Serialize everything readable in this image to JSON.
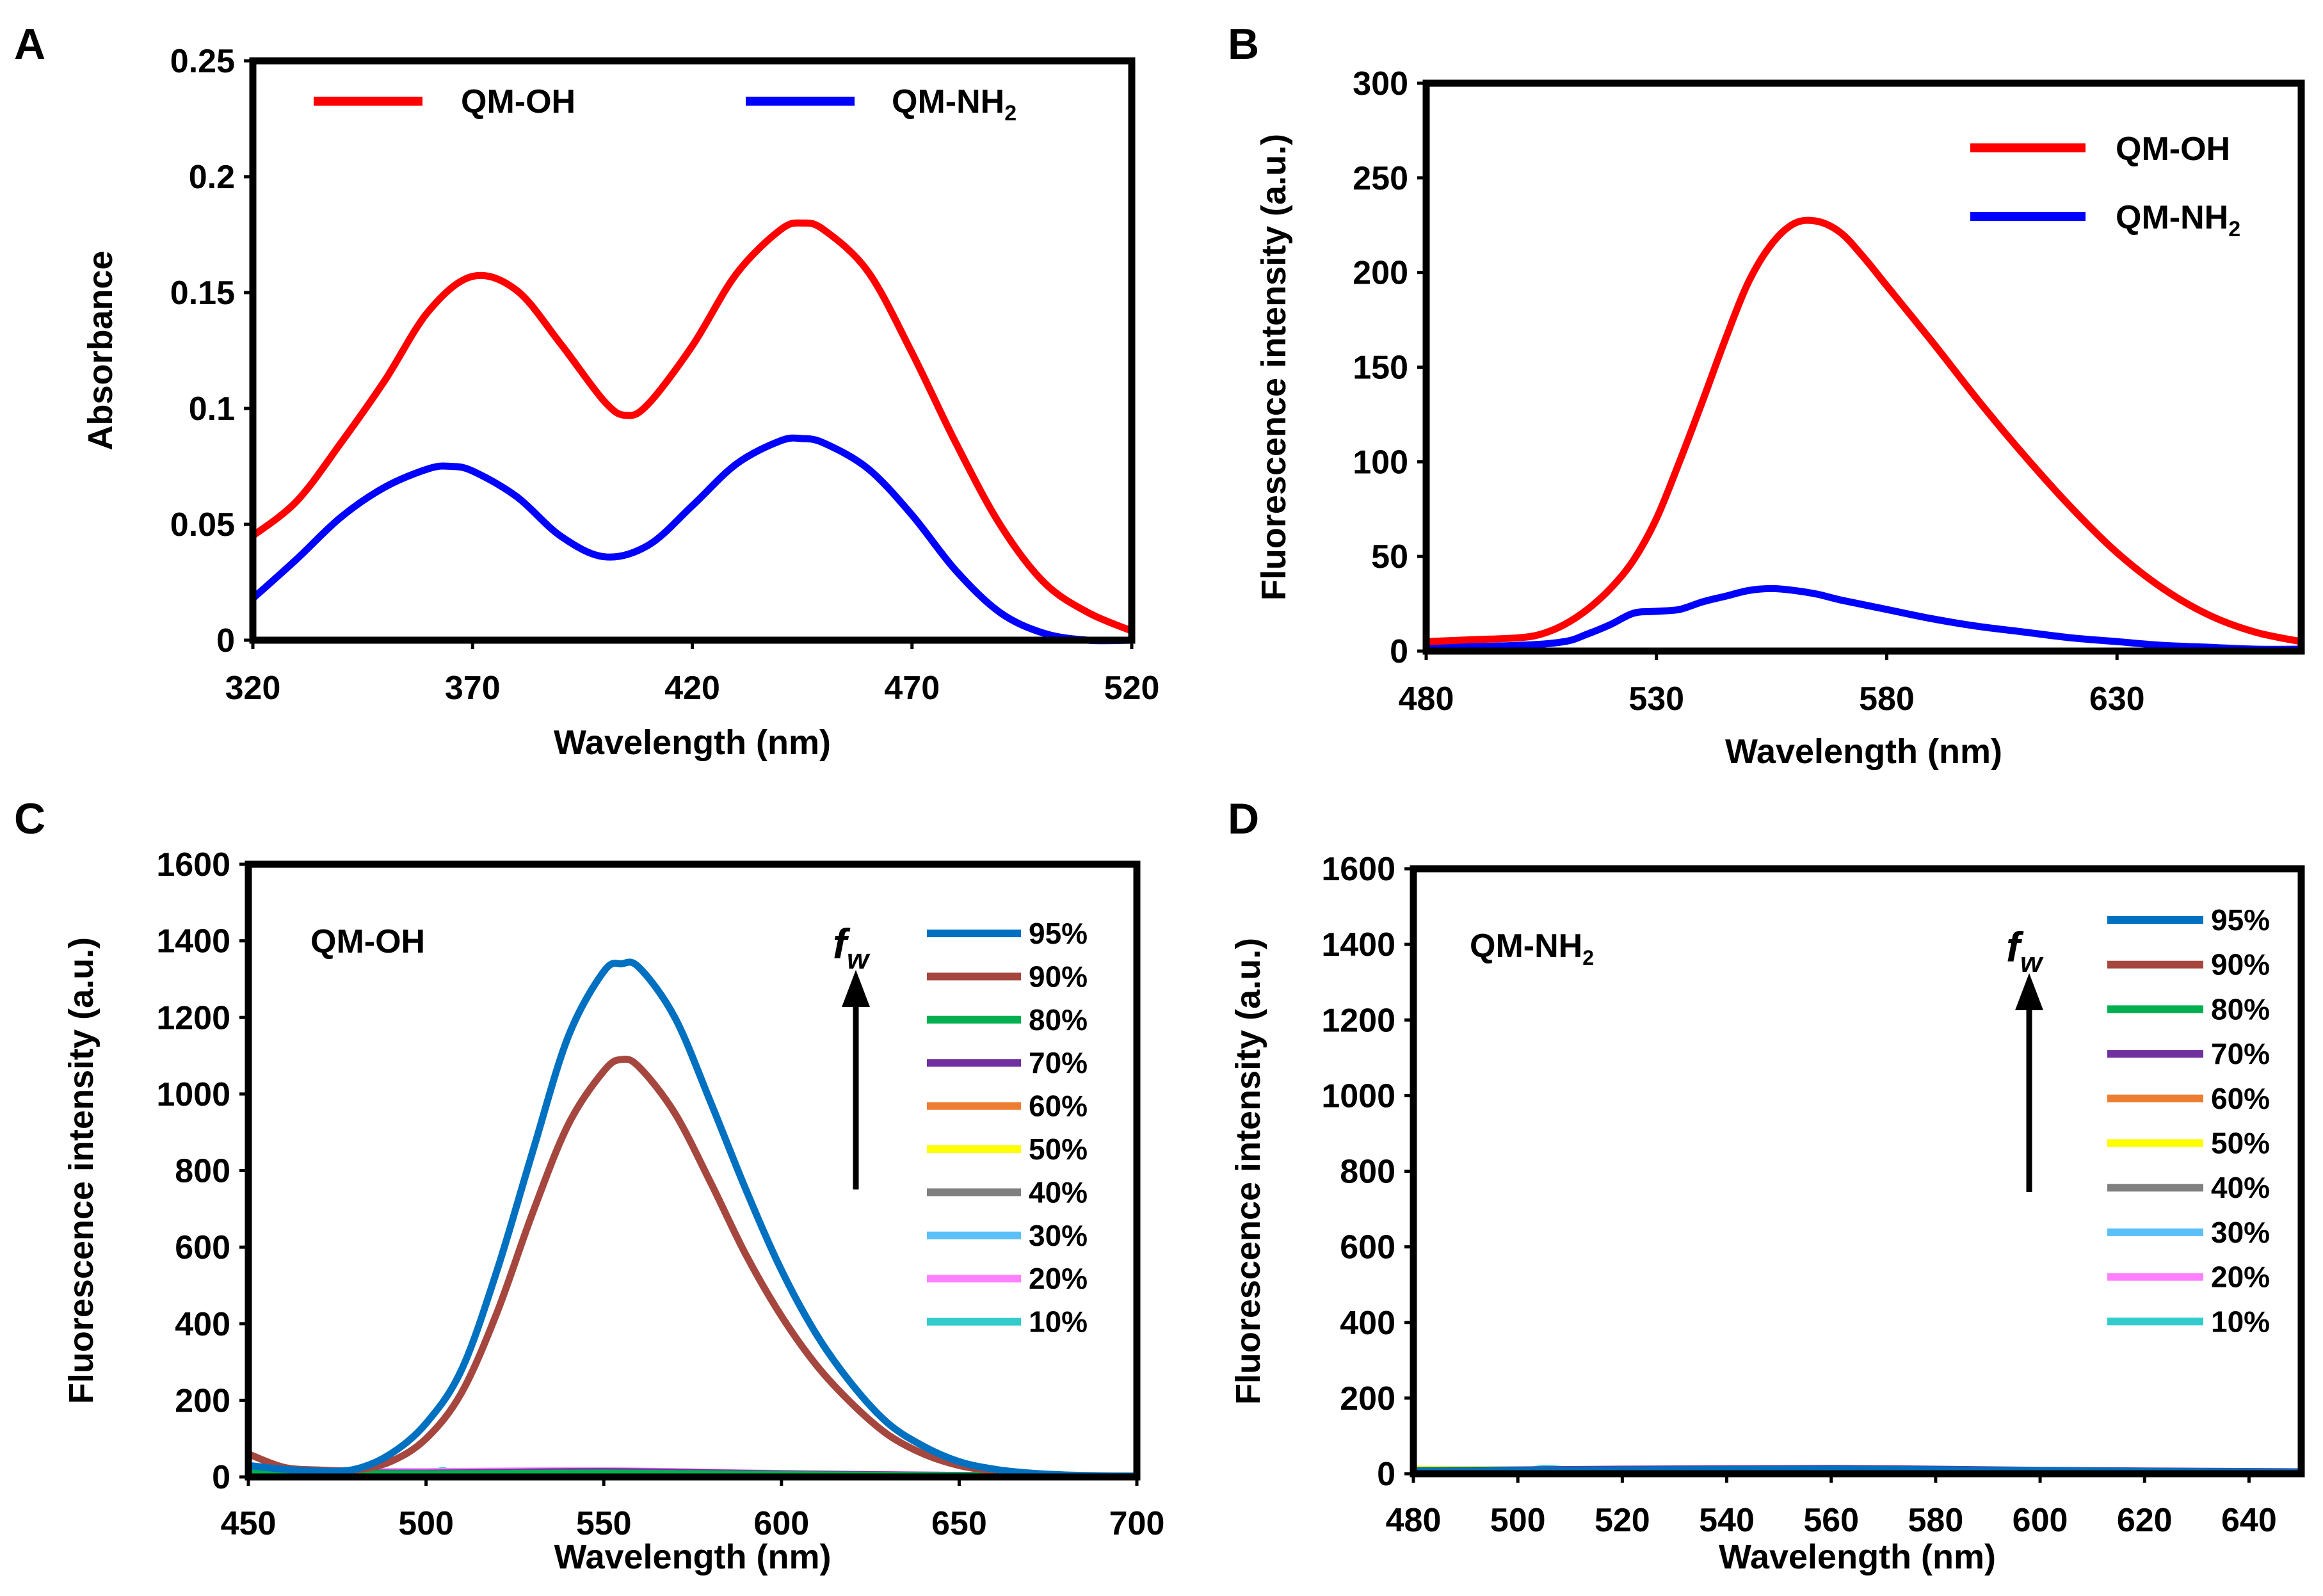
{
  "chart_data": [
    {
      "panel": "A",
      "type": "line",
      "title": "",
      "xlabel": "Wavelength (nm)",
      "ylabel": "Absorbance",
      "xlim": [
        320,
        520
      ],
      "ylim": [
        0,
        0.25
      ],
      "xticks": [
        "320",
        "370",
        "420",
        "470",
        "520"
      ],
      "yticks": [
        "0",
        "0.05",
        "0.1",
        "0.15",
        "0.2",
        "0.25"
      ],
      "legend_position": "top",
      "series": [
        {
          "name": "QM-OH",
          "label": "QM-OH",
          "color": "#ff0000",
          "x": [
            320,
            330,
            340,
            350,
            360,
            370,
            380,
            390,
            400,
            405,
            410,
            420,
            430,
            440,
            445,
            450,
            460,
            470,
            480,
            490,
            500,
            510,
            520
          ],
          "y": [
            0.045,
            0.06,
            0.085,
            0.112,
            0.142,
            0.157,
            0.151,
            0.128,
            0.103,
            0.097,
            0.102,
            0.127,
            0.158,
            0.177,
            0.18,
            0.177,
            0.159,
            0.124,
            0.085,
            0.05,
            0.025,
            0.012,
            0.004
          ]
        },
        {
          "name": "QM-NH2",
          "label_main": "QM-NH",
          "label_sub": "2",
          "color": "#0000ff",
          "x": [
            320,
            330,
            340,
            350,
            360,
            365,
            370,
            380,
            390,
            400,
            410,
            420,
            430,
            440,
            445,
            450,
            460,
            470,
            480,
            490,
            500,
            510,
            520
          ],
          "y": [
            0.018,
            0.035,
            0.053,
            0.066,
            0.074,
            0.075,
            0.073,
            0.062,
            0.045,
            0.036,
            0.041,
            0.058,
            0.076,
            0.086,
            0.087,
            0.085,
            0.074,
            0.054,
            0.03,
            0.012,
            0.003,
            0.0,
            0.0
          ]
        }
      ]
    },
    {
      "panel": "B",
      "type": "line",
      "title": "",
      "xlabel": "Wavelength (nm)",
      "ylabel": "Fluorescence intensity (a.u.)",
      "xlim": [
        480,
        670
      ],
      "ylim": [
        0,
        300
      ],
      "xticks": [
        "480",
        "530",
        "580",
        "630"
      ],
      "xtick_values": [
        480,
        530,
        580,
        630
      ],
      "yticks": [
        "0",
        "50",
        "100",
        "150",
        "200",
        "250",
        "300"
      ],
      "legend_position": "top-right",
      "series": [
        {
          "name": "QM-OH",
          "label": "QM-OH",
          "color": "#ff0000",
          "x": [
            480,
            490,
            500,
            505,
            510,
            515,
            520,
            525,
            530,
            535,
            540,
            545,
            550,
            555,
            560,
            565,
            570,
            575,
            580,
            590,
            600,
            610,
            620,
            630,
            640,
            650,
            660,
            670
          ],
          "y": [
            5,
            6,
            7,
            9,
            14,
            22,
            33,
            48,
            70,
            100,
            132,
            165,
            195,
            215,
            226,
            227,
            221,
            208,
            193,
            163,
            132,
            103,
            76,
            52,
            33,
            19,
            10,
            5
          ]
        },
        {
          "name": "QM-NH2",
          "label_main": "QM-NH",
          "label_sub": "2",
          "color": "#0000ff",
          "x": [
            480,
            500,
            510,
            515,
            520,
            525,
            530,
            535,
            540,
            545,
            550,
            555,
            560,
            565,
            570,
            580,
            590,
            600,
            610,
            620,
            630,
            640,
            650,
            660,
            670
          ],
          "y": [
            2,
            3,
            5,
            9,
            14,
            20,
            21,
            22,
            26,
            29,
            32,
            33,
            32,
            30,
            27,
            22,
            17,
            13,
            10,
            7,
            5,
            3,
            2,
            1,
            1
          ]
        }
      ]
    },
    {
      "panel": "C",
      "type": "line",
      "title": "",
      "inset_label": "QM-OH",
      "xlabel": "Wavelength (nm)",
      "ylabel": "Fluorescence intensity (a.u.)",
      "xlim": [
        450,
        700
      ],
      "ylim": [
        0,
        1600
      ],
      "xticks": [
        "450",
        "500",
        "550",
        "600",
        "650",
        "700"
      ],
      "yticks": [
        "0",
        "200",
        "400",
        "600",
        "800",
        "1000",
        "1200",
        "1400",
        "1600"
      ],
      "arrow_label_main": "f",
      "arrow_label_sub": "w",
      "legend_position": "top-right",
      "series": [
        {
          "name": "95%",
          "color": "#0070c0",
          "x": [
            450,
            460,
            470,
            480,
            490,
            500,
            510,
            520,
            530,
            540,
            550,
            555,
            560,
            570,
            580,
            590,
            600,
            610,
            620,
            630,
            640,
            650,
            660,
            670,
            680,
            690,
            700
          ],
          "y": [
            30,
            20,
            15,
            20,
            60,
            140,
            280,
            540,
            850,
            1150,
            1320,
            1340,
            1330,
            1200,
            980,
            750,
            540,
            370,
            240,
            140,
            80,
            40,
            20,
            10,
            5,
            3,
            2
          ]
        },
        {
          "name": "90%",
          "color": "#a5473f",
          "x": [
            450,
            460,
            470,
            480,
            490,
            500,
            510,
            520,
            530,
            540,
            550,
            555,
            560,
            570,
            580,
            590,
            600,
            610,
            620,
            630,
            640,
            650,
            660,
            670,
            680,
            690,
            700
          ],
          "y": [
            60,
            25,
            18,
            18,
            40,
            100,
            220,
            430,
            690,
            920,
            1060,
            1090,
            1070,
            950,
            770,
            580,
            420,
            290,
            190,
            110,
            60,
            30,
            15,
            8,
            4,
            2,
            1
          ]
        },
        {
          "name": "80%",
          "color": "#00b050",
          "x": [
            450,
            500,
            550,
            600,
            650,
            700
          ],
          "y": [
            10,
            8,
            10,
            6,
            3,
            2
          ]
        },
        {
          "name": "70%",
          "color": "#7030a0",
          "x": [
            450,
            500,
            550,
            600,
            650,
            700
          ],
          "y": [
            12,
            10,
            14,
            8,
            4,
            2
          ]
        },
        {
          "name": "60%",
          "color": "#ed7d31",
          "x": [
            450,
            500,
            550,
            600,
            650,
            700
          ],
          "y": [
            11,
            9,
            12,
            7,
            3,
            2
          ]
        },
        {
          "name": "50%",
          "color": "#ffff00",
          "x": [
            450,
            500,
            550,
            600,
            650,
            700
          ],
          "y": [
            9,
            8,
            9,
            6,
            3,
            2
          ]
        },
        {
          "name": "40%",
          "color": "#808080",
          "x": [
            450,
            500,
            550,
            600,
            650,
            700
          ],
          "y": [
            10,
            9,
            10,
            6,
            3,
            2
          ]
        },
        {
          "name": "30%",
          "color": "#5bc0f8",
          "x": [
            450,
            500,
            550,
            600,
            650,
            700
          ],
          "y": [
            12,
            10,
            12,
            7,
            4,
            2
          ]
        },
        {
          "name": "20%",
          "color": "#ff80ff",
          "x": [
            450,
            500,
            550,
            600,
            650,
            700
          ],
          "y": [
            14,
            14,
            16,
            9,
            4,
            2
          ]
        },
        {
          "name": "10%",
          "color": "#33cccc",
          "x": [
            450,
            460,
            480,
            500,
            505,
            510,
            550,
            600,
            650,
            700
          ],
          "y": [
            15,
            10,
            8,
            12,
            16,
            10,
            8,
            5,
            3,
            2
          ]
        }
      ]
    },
    {
      "panel": "D",
      "type": "line",
      "title": "",
      "inset_label_main": "QM-NH",
      "inset_label_sub": "2",
      "xlabel": "Wavelength (nm)",
      "ylabel": "Fluorescence intensity (a.u.)",
      "xlim": [
        480,
        650
      ],
      "ylim": [
        0,
        1600
      ],
      "xticks": [
        "480",
        "500",
        "520",
        "540",
        "560",
        "580",
        "600",
        "620",
        "640"
      ],
      "xtick_values": [
        480,
        500,
        520,
        540,
        560,
        580,
        600,
        620,
        640
      ],
      "yticks": [
        "0",
        "200",
        "400",
        "600",
        "800",
        "1000",
        "1200",
        "1400",
        "1600"
      ],
      "arrow_label_main": "f",
      "arrow_label_sub": "w",
      "legend_position": "top-right",
      "series": [
        {
          "name": "95%",
          "color": "#0070c0",
          "x": [
            480,
            520,
            560,
            600,
            650
          ],
          "y": [
            8,
            10,
            12,
            8,
            4
          ]
        },
        {
          "name": "90%",
          "color": "#a5473f",
          "x": [
            480,
            520,
            560,
            600,
            650
          ],
          "y": [
            8,
            10,
            11,
            8,
            4
          ]
        },
        {
          "name": "80%",
          "color": "#00b050",
          "x": [
            480,
            520,
            560,
            600,
            650
          ],
          "y": [
            7,
            9,
            10,
            7,
            4
          ]
        },
        {
          "name": "70%",
          "color": "#7030a0",
          "x": [
            480,
            520,
            560,
            600,
            650
          ],
          "y": [
            8,
            12,
            14,
            9,
            5
          ]
        },
        {
          "name": "60%",
          "color": "#ed7d31",
          "x": [
            480,
            520,
            560,
            600,
            650
          ],
          "y": [
            7,
            9,
            10,
            7,
            4
          ]
        },
        {
          "name": "50%",
          "color": "#ffff00",
          "x": [
            480,
            500,
            520,
            560,
            600,
            650
          ],
          "y": [
            12,
            10,
            8,
            9,
            7,
            4
          ]
        },
        {
          "name": "40%",
          "color": "#808080",
          "x": [
            480,
            520,
            560,
            600,
            650
          ],
          "y": [
            8,
            10,
            11,
            8,
            4
          ]
        },
        {
          "name": "30%",
          "color": "#5bc0f8",
          "x": [
            480,
            520,
            560,
            600,
            650
          ],
          "y": [
            8,
            10,
            10,
            8,
            4
          ]
        },
        {
          "name": "20%",
          "color": "#ff80ff",
          "x": [
            480,
            520,
            560,
            600,
            650
          ],
          "y": [
            8,
            10,
            10,
            7,
            4
          ]
        },
        {
          "name": "10%",
          "color": "#33cccc",
          "x": [
            480,
            500,
            505,
            510,
            520,
            560,
            600,
            650
          ],
          "y": [
            9,
            8,
            14,
            10,
            9,
            8,
            6,
            4
          ]
        }
      ]
    }
  ],
  "panel_letters": [
    "A",
    "B",
    "C",
    "D"
  ]
}
